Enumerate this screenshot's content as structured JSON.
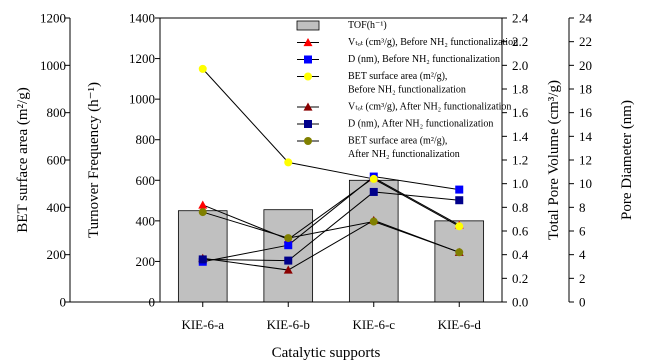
{
  "chart_data": {
    "type": "bar",
    "xlabel": "Catalytic supports",
    "categories": [
      "KIE-6-a",
      "KIE-6-b",
      "KIE-6-c",
      "KIE-6-d"
    ],
    "axes": {
      "bet": {
        "label": "BET surface area (m²/g)",
        "ylim": [
          0,
          1200
        ],
        "ticks": [
          "0",
          "200",
          "400",
          "600",
          "800",
          "1000",
          "1200"
        ]
      },
      "tof": {
        "label": "Turnover Frequency (h⁻¹)",
        "ylim": [
          0,
          1400
        ],
        "ticks": [
          "0",
          "200",
          "400",
          "600",
          "800",
          "1000",
          "1200",
          "1400"
        ]
      },
      "volume": {
        "label": "Total Pore Volume (cm³/g)",
        "ylim": [
          0,
          2.4
        ],
        "ticks": [
          "0.0",
          "0.2",
          "0.4",
          "0.6",
          "0.8",
          "1.0",
          "1.2",
          "1.4",
          "1.6",
          "1.8",
          "2.0",
          "2.2",
          "2.4"
        ]
      },
      "diameter": {
        "label": "Pore Diameter (nm)",
        "ylim": [
          0,
          24
        ],
        "ticks": [
          "0",
          "2",
          "4",
          "6",
          "8",
          "10",
          "12",
          "14",
          "16",
          "18",
          "20",
          "22",
          "24"
        ]
      }
    },
    "bars": {
      "name": "TOF(h⁻¹)",
      "axis": "tof",
      "values": [
        450,
        455,
        600,
        400
      ],
      "color": "#c0c0c0"
    },
    "series": [
      {
        "name": "Vₜₒₜ (cm³/g), Before NH₂ functionalization",
        "axis": "volume",
        "marker": "triangle",
        "color": "#ff0000",
        "values": [
          0.82,
          0.53,
          1.05,
          0.65
        ]
      },
      {
        "name": "D (nm), Before NH₂ functionalization",
        "axis": "diameter",
        "marker": "square",
        "color": "#0000ff",
        "values": [
          3.4,
          4.8,
          10.6,
          9.5
        ]
      },
      {
        "name": "BET surface area (m²/g), Before NH₂ functionalization",
        "axis": "bet",
        "marker": "circle",
        "color": "#ffff00",
        "values": [
          985,
          590,
          520,
          320
        ]
      },
      {
        "name": "Vₜₒₜ (cm³/g), After NH₂ functionalization",
        "axis": "volume",
        "marker": "triangle",
        "color": "#8b0000",
        "values": [
          0.37,
          0.27,
          0.69,
          0.42
        ]
      },
      {
        "name": "D (nm), After NH₂ functionalization",
        "axis": "diameter",
        "marker": "square",
        "color": "#00008b",
        "values": [
          3.6,
          3.5,
          9.3,
          8.6
        ]
      },
      {
        "name": "BET surface area (m²/g), After NH₂ functionalization",
        "axis": "bet",
        "marker": "circle",
        "color": "#808000",
        "values": [
          380,
          270,
          340,
          210
        ]
      }
    ],
    "legend": {
      "position": "top-right",
      "entries": [
        {
          "lines": [
            "TOF(h⁻¹)"
          ]
        },
        {
          "lines": [
            "Vₜₒₜ (cm³/g), Before NH₂ functionalization"
          ]
        },
        {
          "lines": [
            "D (nm), Before NH₂ functionalization"
          ]
        },
        {
          "lines": [
            "BET surface area (m²/g),",
            "Before NH₂ functionalization"
          ]
        },
        {
          "lines": [
            "Vₜₒₜ (cm³/g), After NH₂  functionalization"
          ]
        },
        {
          "lines": [
            "D (nm), After NH₂ functionalization"
          ]
        },
        {
          "lines": [
            "BET surface area (m²/g),",
            "After NH₂ functionalization"
          ]
        }
      ]
    }
  }
}
